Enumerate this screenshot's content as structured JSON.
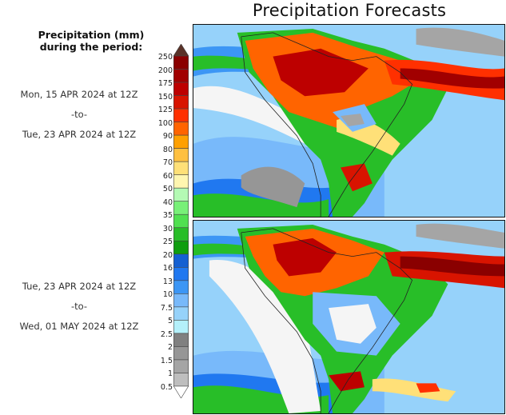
{
  "title": "Precipitation Forecasts",
  "legend": {
    "heading_line1": "Precipitation (mm)",
    "heading_line2": "during the period:",
    "levels": [
      "250",
      "200",
      "175",
      "150",
      "125",
      "100",
      "90",
      "80",
      "70",
      "60",
      "50",
      "40",
      "35",
      "30",
      "25",
      "20",
      "16",
      "13",
      "10",
      "7.5",
      "5",
      "2.5",
      "2",
      "1.5",
      "1",
      "0.5"
    ],
    "colors": [
      "#8a0000",
      "#a10000",
      "#bd0000",
      "#d81400",
      "#ff3000",
      "#ff6400",
      "#ffa000",
      "#ffc040",
      "#ffe078",
      "#fff6b0",
      "#b4fab4",
      "#78f078",
      "#50e050",
      "#28be28",
      "#0f9e0f",
      "#1460d2",
      "#2078f0",
      "#3c96f5",
      "#78b9fa",
      "#96d2fa",
      "#b4f0fa",
      "#808080",
      "#969696",
      "#a5a5a5",
      "#bebebe"
    ],
    "top_arrow_color": "#5a3228",
    "bottom_arrow_color": "#ffffff"
  },
  "periods": [
    {
      "start": "Mon, 15 APR 2024 at 12Z",
      "sep": "-to-",
      "end": "Tue, 23 APR 2024 at 12Z"
    },
    {
      "start": "Tue, 23 APR 2024 at 12Z",
      "sep": "-to-",
      "end": "Wed, 01 MAY 2024 at 12Z"
    }
  ],
  "maps": [
    {
      "name": "forecast-map-period-1",
      "region": "South America"
    },
    {
      "name": "forecast-map-period-2",
      "region": "South America"
    }
  ]
}
